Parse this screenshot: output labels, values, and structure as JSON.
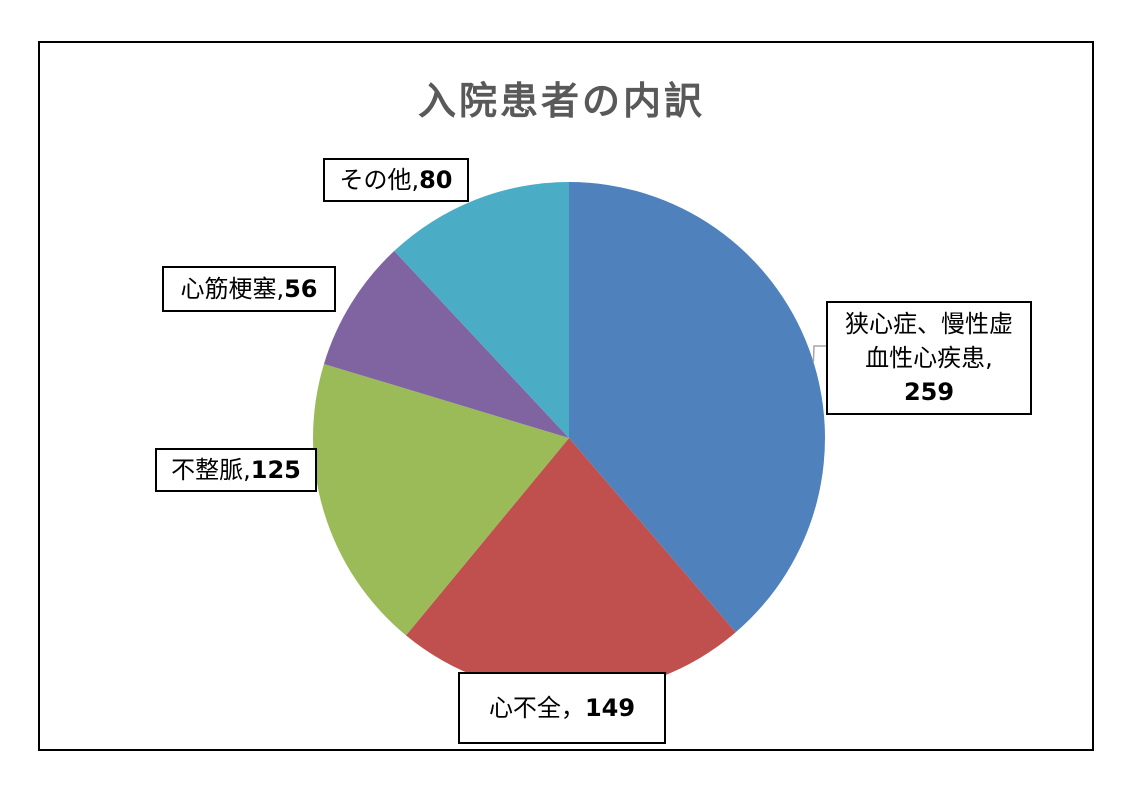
{
  "chart_data": {
    "type": "pie",
    "title": "入院患者の内訳",
    "categories": [
      "狭心症、慢性虚血性心疾患",
      "心不全",
      "不整脈",
      "心筋梗塞",
      "その他"
    ],
    "values": [
      259,
      149,
      125,
      56,
      80
    ],
    "colors": [
      "#4F81BD",
      "#C0504D",
      "#9BBB59",
      "#8064A2",
      "#4BACC6"
    ],
    "data_labels": [
      {
        "lines": [
          "狭心症、慢性虚",
          "血性心疾患,"
        ],
        "value": "259"
      },
      {
        "lines": [
          "心不全，"
        ],
        "value": "149"
      },
      {
        "lines": [
          "不整脈,"
        ],
        "value": "125"
      },
      {
        "lines": [
          "心筋梗塞,"
        ],
        "value": "56"
      },
      {
        "lines": [
          "その他,"
        ],
        "value": "80"
      }
    ],
    "start_angle": "12 o'clock",
    "direction": "clockwise",
    "legend": "none"
  }
}
